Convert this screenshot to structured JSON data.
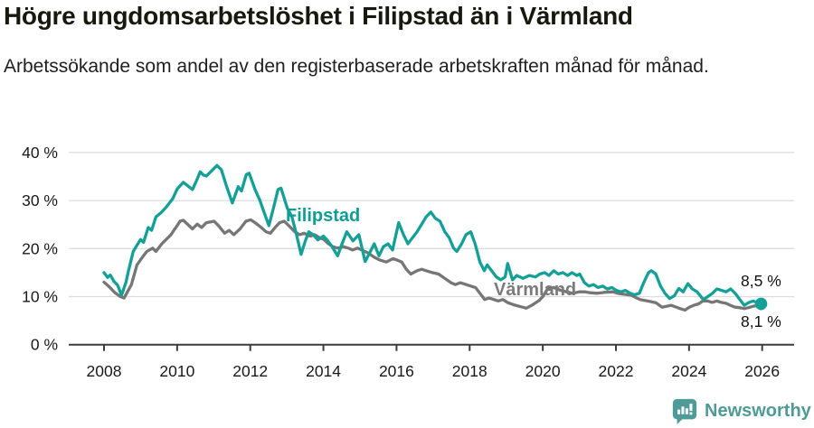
{
  "title": "Högre ungdomsarbetslöshet i Filipstad än i Värmland",
  "subtitle": "Arbetssökande som andel av den registerbaserade arbetskraften månad för månad.",
  "footer": {
    "brand": "Newsworthy",
    "brand_color": "#4e9a96"
  },
  "chart_data": {
    "type": "line",
    "title": "Högre ungdomsarbetslöshet i Filipstad än i Värmland",
    "xlabel": "",
    "ylabel": "Arbetssökande som andel av den registerbaserade arbetskraften (%)",
    "x_range": [
      2008,
      2026
    ],
    "ylim": [
      0,
      40
    ],
    "grid": true,
    "legend_position": "inline-labels",
    "x_ticks": [
      2008,
      2010,
      2012,
      2014,
      2016,
      2018,
      2020,
      2022,
      2024,
      2026
    ],
    "y_ticks": [
      0,
      10,
      20,
      30,
      40
    ],
    "y_tick_labels": [
      "0 %",
      "10 %",
      "20 %",
      "30 %",
      "40 %"
    ],
    "axis_color": "#3c3c3c",
    "grid_color": "#dcdcdc",
    "tick_label_color": "#191919",
    "series": [
      {
        "name": "Filipstad",
        "color": "#14a096",
        "label_color": "#0f9e94",
        "end_label": "8,5 %",
        "end_value": 8.5,
        "points": [
          [
            2008.0,
            15.0
          ],
          [
            2008.1,
            14.0
          ],
          [
            2008.17,
            14.5
          ],
          [
            2008.27,
            13.2
          ],
          [
            2008.37,
            12.4
          ],
          [
            2008.48,
            10.3
          ],
          [
            2008.6,
            13.0
          ],
          [
            2008.67,
            15.4
          ],
          [
            2008.8,
            19.4
          ],
          [
            2008.9,
            20.7
          ],
          [
            2009.0,
            21.9
          ],
          [
            2009.08,
            21.3
          ],
          [
            2009.21,
            24.4
          ],
          [
            2009.3,
            23.8
          ],
          [
            2009.42,
            26.6
          ],
          [
            2009.55,
            27.4
          ],
          [
            2009.7,
            28.6
          ],
          [
            2009.88,
            30.4
          ],
          [
            2010.0,
            32.4
          ],
          [
            2010.17,
            33.8
          ],
          [
            2010.3,
            33.0
          ],
          [
            2010.42,
            32.3
          ],
          [
            2010.55,
            34.5
          ],
          [
            2010.63,
            36.0
          ],
          [
            2010.72,
            35.3
          ],
          [
            2010.8,
            35.1
          ],
          [
            2010.97,
            36.4
          ],
          [
            2011.09,
            37.3
          ],
          [
            2011.21,
            36.4
          ],
          [
            2011.35,
            33.0
          ],
          [
            2011.51,
            29.5
          ],
          [
            2011.67,
            32.9
          ],
          [
            2011.76,
            32.0
          ],
          [
            2011.89,
            35.4
          ],
          [
            2011.97,
            35.7
          ],
          [
            2012.13,
            32.3
          ],
          [
            2012.26,
            30.1
          ],
          [
            2012.38,
            27.5
          ],
          [
            2012.51,
            24.8
          ],
          [
            2012.64,
            28.6
          ],
          [
            2012.76,
            32.3
          ],
          [
            2012.84,
            32.6
          ],
          [
            2013.01,
            28.5
          ],
          [
            2013.14,
            26.6
          ],
          [
            2013.26,
            23.0
          ],
          [
            2013.39,
            18.8
          ],
          [
            2013.5,
            21.5
          ],
          [
            2013.6,
            23.5
          ],
          [
            2013.72,
            22.9
          ],
          [
            2013.85,
            21.8
          ],
          [
            2014.0,
            22.6
          ],
          [
            2014.1,
            21.8
          ],
          [
            2014.22,
            20.6
          ],
          [
            2014.39,
            18.5
          ],
          [
            2014.5,
            20.8
          ],
          [
            2014.64,
            23.5
          ],
          [
            2014.81,
            21.6
          ],
          [
            2014.97,
            22.9
          ],
          [
            2015.14,
            17.3
          ],
          [
            2015.39,
            21.0
          ],
          [
            2015.52,
            18.5
          ],
          [
            2015.64,
            20.4
          ],
          [
            2015.77,
            21.0
          ],
          [
            2015.89,
            19.7
          ],
          [
            2016.06,
            25.4
          ],
          [
            2016.19,
            22.9
          ],
          [
            2016.31,
            21.0
          ],
          [
            2016.44,
            22.3
          ],
          [
            2016.56,
            23.5
          ],
          [
            2016.69,
            25.1
          ],
          [
            2016.81,
            26.6
          ],
          [
            2016.94,
            27.6
          ],
          [
            2017.06,
            26.3
          ],
          [
            2017.19,
            25.7
          ],
          [
            2017.32,
            23.5
          ],
          [
            2017.44,
            22.3
          ],
          [
            2017.56,
            20.1
          ],
          [
            2017.65,
            19.4
          ],
          [
            2017.78,
            21.0
          ],
          [
            2017.9,
            22.9
          ],
          [
            2018.03,
            23.5
          ],
          [
            2018.15,
            21.0
          ],
          [
            2018.28,
            17.2
          ],
          [
            2018.4,
            15.4
          ],
          [
            2018.48,
            16.6
          ],
          [
            2018.6,
            15.4
          ],
          [
            2018.73,
            14.1
          ],
          [
            2018.85,
            13.5
          ],
          [
            2018.97,
            14.1
          ],
          [
            2019.04,
            16.9
          ],
          [
            2019.17,
            13.5
          ],
          [
            2019.29,
            14.4
          ],
          [
            2019.46,
            13.8
          ],
          [
            2019.63,
            14.4
          ],
          [
            2019.8,
            14.1
          ],
          [
            2019.92,
            14.7
          ],
          [
            2020.05,
            15.0
          ],
          [
            2020.17,
            14.4
          ],
          [
            2020.3,
            15.4
          ],
          [
            2020.42,
            14.7
          ],
          [
            2020.55,
            15.0
          ],
          [
            2020.68,
            14.4
          ],
          [
            2020.8,
            15.0
          ],
          [
            2020.93,
            14.4
          ],
          [
            2021.01,
            14.7
          ],
          [
            2021.14,
            12.9
          ],
          [
            2021.26,
            12.2
          ],
          [
            2021.39,
            12.5
          ],
          [
            2021.51,
            11.9
          ],
          [
            2021.64,
            12.2
          ],
          [
            2021.76,
            11.6
          ],
          [
            2021.89,
            11.9
          ],
          [
            2022.01,
            11.3
          ],
          [
            2022.14,
            11.0
          ],
          [
            2022.26,
            11.3
          ],
          [
            2022.39,
            10.7
          ],
          [
            2022.51,
            10.4
          ],
          [
            2022.64,
            10.7
          ],
          [
            2022.76,
            12.9
          ],
          [
            2022.89,
            15.0
          ],
          [
            2022.97,
            15.4
          ],
          [
            2023.09,
            14.7
          ],
          [
            2023.22,
            12.2
          ],
          [
            2023.34,
            10.7
          ],
          [
            2023.47,
            9.6
          ],
          [
            2023.6,
            10.2
          ],
          [
            2023.72,
            11.7
          ],
          [
            2023.84,
            11.0
          ],
          [
            2023.97,
            12.7
          ],
          [
            2024.09,
            11.6
          ],
          [
            2024.22,
            11.0
          ],
          [
            2024.39,
            9.4
          ],
          [
            2024.51,
            10.0
          ],
          [
            2024.64,
            10.7
          ],
          [
            2024.76,
            11.6
          ],
          [
            2024.89,
            11.3
          ],
          [
            2025.01,
            11.0
          ],
          [
            2025.14,
            11.6
          ],
          [
            2025.26,
            10.7
          ],
          [
            2025.39,
            9.4
          ],
          [
            2025.51,
            8.2
          ],
          [
            2025.64,
            8.8
          ],
          [
            2025.76,
            9.1
          ],
          [
            2025.89,
            8.6
          ],
          [
            2025.97,
            8.5
          ]
        ]
      },
      {
        "name": "Värmland",
        "color": "#767676",
        "label_color": "#7b7b7b",
        "end_label": "8,1 %",
        "end_value": 8.1,
        "points": [
          [
            2008.0,
            13.0
          ],
          [
            2008.15,
            12.0
          ],
          [
            2008.3,
            10.8
          ],
          [
            2008.45,
            10.0
          ],
          [
            2008.55,
            9.7
          ],
          [
            2008.75,
            12.5
          ],
          [
            2008.9,
            16.6
          ],
          [
            2009.05,
            18.2
          ],
          [
            2009.17,
            19.4
          ],
          [
            2009.33,
            20.1
          ],
          [
            2009.42,
            19.4
          ],
          [
            2009.58,
            21.0
          ],
          [
            2009.83,
            22.9
          ],
          [
            2010.0,
            24.8
          ],
          [
            2010.08,
            25.7
          ],
          [
            2010.17,
            25.9
          ],
          [
            2010.42,
            24.1
          ],
          [
            2010.55,
            25.1
          ],
          [
            2010.67,
            24.4
          ],
          [
            2010.8,
            25.4
          ],
          [
            2011.01,
            25.7
          ],
          [
            2011.13,
            24.8
          ],
          [
            2011.3,
            23.2
          ],
          [
            2011.42,
            23.8
          ],
          [
            2011.55,
            22.9
          ],
          [
            2011.72,
            24.1
          ],
          [
            2011.88,
            25.7
          ],
          [
            2012.01,
            26.0
          ],
          [
            2012.13,
            25.4
          ],
          [
            2012.3,
            24.4
          ],
          [
            2012.43,
            23.5
          ],
          [
            2012.55,
            23.2
          ],
          [
            2012.68,
            24.4
          ],
          [
            2012.8,
            25.4
          ],
          [
            2012.93,
            25.7
          ],
          [
            2013.05,
            24.8
          ],
          [
            2013.22,
            23.5
          ],
          [
            2013.35,
            22.9
          ],
          [
            2013.47,
            23.2
          ],
          [
            2013.64,
            22.6
          ],
          [
            2013.76,
            22.9
          ],
          [
            2013.89,
            22.3
          ],
          [
            2014.01,
            21.9
          ],
          [
            2014.14,
            21.0
          ],
          [
            2014.26,
            20.4
          ],
          [
            2014.39,
            20.1
          ],
          [
            2014.55,
            20.4
          ],
          [
            2014.68,
            20.1
          ],
          [
            2014.8,
            19.7
          ],
          [
            2014.93,
            20.1
          ],
          [
            2015.05,
            19.7
          ],
          [
            2015.22,
            19.1
          ],
          [
            2015.39,
            18.2
          ],
          [
            2015.55,
            17.6
          ],
          [
            2015.72,
            17.2
          ],
          [
            2015.9,
            17.9
          ],
          [
            2016.02,
            17.6
          ],
          [
            2016.14,
            17.2
          ],
          [
            2016.27,
            15.7
          ],
          [
            2016.39,
            14.7
          ],
          [
            2016.56,
            15.4
          ],
          [
            2016.69,
            15.7
          ],
          [
            2016.81,
            15.4
          ],
          [
            2016.98,
            15.0
          ],
          [
            2017.15,
            14.7
          ],
          [
            2017.32,
            13.8
          ],
          [
            2017.49,
            12.9
          ],
          [
            2017.61,
            12.5
          ],
          [
            2017.74,
            12.9
          ],
          [
            2017.91,
            12.5
          ],
          [
            2018.03,
            12.2
          ],
          [
            2018.16,
            11.9
          ],
          [
            2018.28,
            10.7
          ],
          [
            2018.41,
            9.4
          ],
          [
            2018.53,
            9.7
          ],
          [
            2018.66,
            9.4
          ],
          [
            2018.78,
            9.1
          ],
          [
            2018.91,
            9.4
          ],
          [
            2019.03,
            8.8
          ],
          [
            2019.2,
            8.3
          ],
          [
            2019.4,
            7.9
          ],
          [
            2019.55,
            7.6
          ],
          [
            2019.7,
            8.2
          ],
          [
            2019.9,
            9.2
          ],
          [
            2020.0,
            10.0
          ],
          [
            2020.13,
            11.6
          ],
          [
            2020.3,
            11.9
          ],
          [
            2020.49,
            11.3
          ],
          [
            2020.65,
            11.0
          ],
          [
            2020.82,
            10.7
          ],
          [
            2021.0,
            11.0
          ],
          [
            2021.16,
            11.0
          ],
          [
            2021.3,
            10.8
          ],
          [
            2021.49,
            10.7
          ],
          [
            2021.7,
            10.9
          ],
          [
            2021.91,
            11.0
          ],
          [
            2022.1,
            10.6
          ],
          [
            2022.41,
            10.3
          ],
          [
            2022.66,
            9.4
          ],
          [
            2022.92,
            9.0
          ],
          [
            2023.1,
            8.7
          ],
          [
            2023.26,
            7.8
          ],
          [
            2023.51,
            8.2
          ],
          [
            2023.76,
            7.5
          ],
          [
            2023.89,
            7.2
          ],
          [
            2024.01,
            7.8
          ],
          [
            2024.13,
            8.2
          ],
          [
            2024.26,
            8.5
          ],
          [
            2024.38,
            9.1
          ],
          [
            2024.51,
            9.1
          ],
          [
            2024.63,
            8.8
          ],
          [
            2024.76,
            9.1
          ],
          [
            2024.88,
            8.8
          ],
          [
            2025.01,
            8.6
          ],
          [
            2025.13,
            8.2
          ],
          [
            2025.26,
            7.8
          ],
          [
            2025.38,
            7.7
          ],
          [
            2025.51,
            7.5
          ],
          [
            2025.63,
            7.7
          ],
          [
            2025.76,
            8.0
          ],
          [
            2025.88,
            8.2
          ],
          [
            2025.97,
            8.1
          ]
        ]
      }
    ]
  }
}
